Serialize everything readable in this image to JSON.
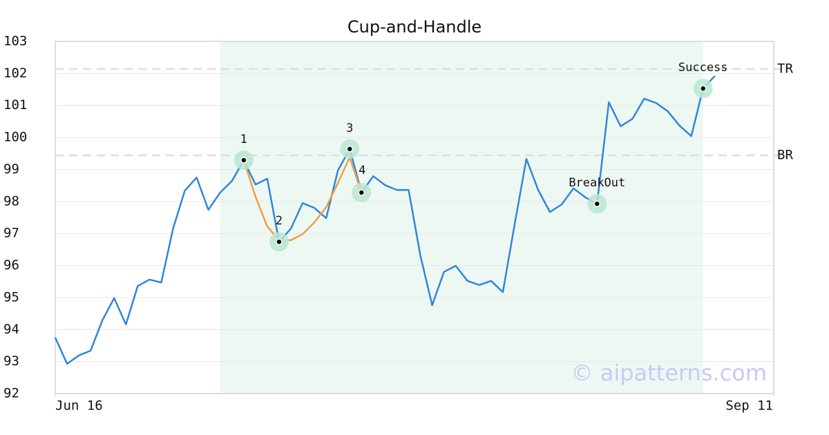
{
  "chart_data": {
    "type": "line",
    "title": "Cup-and-Handle",
    "x": [
      0,
      1,
      2,
      3,
      4,
      5,
      6,
      7,
      8,
      9,
      10,
      11,
      12,
      13,
      14,
      15,
      16,
      17,
      18,
      19,
      20,
      21,
      22,
      23,
      24,
      25,
      26,
      27,
      28,
      29,
      30,
      31,
      32,
      33,
      34,
      35,
      36,
      37,
      38,
      39,
      40,
      41,
      42,
      43,
      44,
      45,
      46,
      47,
      48,
      49,
      50,
      51,
      52,
      53,
      54,
      55,
      56
    ],
    "xlim": [
      0,
      61
    ],
    "xticks": [
      {
        "value": 0,
        "label": "Jun 16"
      },
      {
        "value": 61,
        "label": "Sep 11"
      }
    ],
    "ylim": [
      92,
      103
    ],
    "yticks": [
      92,
      93,
      94,
      95,
      96,
      97,
      98,
      99,
      100,
      101,
      102,
      103
    ],
    "grid": true,
    "series": [
      {
        "color": "#2e86de",
        "values": [
          93.75,
          92.93,
          93.19,
          93.34,
          94.29,
          94.98,
          94.16,
          95.36,
          95.56,
          95.47,
          97.15,
          98.34,
          98.75,
          97.74,
          98.28,
          98.64,
          99.29,
          98.53,
          98.71,
          96.74,
          97.15,
          97.95,
          97.8,
          97.48,
          98.97,
          99.64,
          98.28,
          98.79,
          98.51,
          98.36,
          98.36,
          96.31,
          94.76,
          95.8,
          95.99,
          95.52,
          95.39,
          95.52,
          95.17,
          97.28,
          99.33,
          98.36,
          97.67,
          97.91,
          98.41,
          98.13,
          97.93,
          101.1,
          100.35,
          100.58,
          101.21,
          101.08,
          100.82,
          100.37,
          100.04,
          101.53,
          101.92
        ]
      },
      {
        "color": "#f39c45",
        "values": [
          null,
          null,
          null,
          null,
          null,
          null,
          null,
          null,
          null,
          null,
          null,
          null,
          null,
          null,
          null,
          null,
          99.29,
          98.15,
          97.22,
          96.79,
          96.79,
          96.98,
          97.35,
          97.82,
          98.58,
          99.38,
          98.28,
          null,
          null,
          null,
          null,
          null,
          null,
          null,
          null,
          null,
          null,
          null,
          null,
          null,
          null,
          null,
          null,
          null,
          null,
          null,
          null,
          null,
          null,
          null,
          null,
          null,
          null,
          null,
          null,
          null,
          null
        ]
      }
    ],
    "highlight_range": [
      14,
      55
    ],
    "levels": [
      {
        "label": "TR",
        "value": 102.14
      },
      {
        "label": "BR",
        "value": 99.44
      }
    ],
    "points": [
      {
        "label": "1",
        "x": 16
      },
      {
        "label": "2",
        "x": 19
      },
      {
        "label": "3",
        "x": 25
      },
      {
        "label": "4",
        "x": 26
      },
      {
        "label": "BreakOut",
        "x": 46
      },
      {
        "label": "Success",
        "x": 55
      }
    ],
    "watermark": "© aipatterns.com"
  }
}
